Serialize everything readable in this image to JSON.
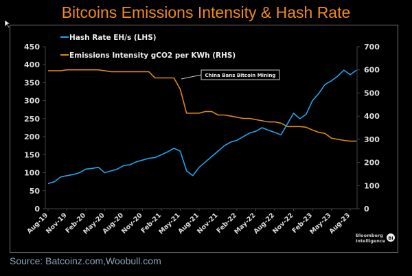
{
  "title": "Bitcoins Emissions Intensity & Hash Rate",
  "source": "Source: Batcoinz.com,Woobull.com",
  "brand": {
    "line1": "Bloomberg",
    "line2": "Intelligence",
    "badge": "BI"
  },
  "chart_data": {
    "type": "line",
    "title": "Bitcoins Emissions Intensity & Hash Rate",
    "x_tick_labels": [
      "Aug-19",
      "Nov-19",
      "Feb-20",
      "May-20",
      "Aug-20",
      "Nov-20",
      "Feb-21",
      "May-21",
      "Aug-21",
      "Nov-21",
      "Feb-22",
      "May-22",
      "Aug-22",
      "Nov-22",
      "Feb-23",
      "May-23",
      "Aug-23"
    ],
    "x": [
      "Aug-19",
      "Sep-19",
      "Oct-19",
      "Nov-19",
      "Dec-19",
      "Jan-20",
      "Feb-20",
      "Mar-20",
      "Apr-20",
      "May-20",
      "Jun-20",
      "Jul-20",
      "Aug-20",
      "Sep-20",
      "Oct-20",
      "Nov-20",
      "Dec-20",
      "Jan-21",
      "Feb-21",
      "Mar-21",
      "Apr-21",
      "May-21",
      "Jun-21",
      "Jul-21",
      "Aug-21",
      "Sep-21",
      "Oct-21",
      "Nov-21",
      "Dec-21",
      "Jan-22",
      "Feb-22",
      "Mar-22",
      "Apr-22",
      "May-22",
      "Jun-22",
      "Jul-22",
      "Aug-22",
      "Sep-22",
      "Oct-22",
      "Nov-22",
      "Dec-22",
      "Jan-23",
      "Feb-23",
      "Mar-23",
      "Apr-23",
      "May-23",
      "Jun-23",
      "Jul-23",
      "Aug-23",
      "Sep-23"
    ],
    "y_left": {
      "ylim": [
        0,
        450
      ],
      "ticks": [
        0,
        50,
        100,
        150,
        200,
        250,
        300,
        350,
        400,
        450
      ]
    },
    "y_right": {
      "ylim": [
        0,
        700
      ],
      "ticks": [
        0,
        100,
        200,
        300,
        400,
        500,
        600,
        700
      ]
    },
    "legend_placement": "top-left",
    "grid": false,
    "series": [
      {
        "name": "Hash Rate EH/s (LHS)",
        "axis": "left",
        "color": "#1ea7f0",
        "values": [
          70,
          75,
          88,
          92,
          95,
          100,
          110,
          112,
          115,
          100,
          105,
          110,
          120,
          122,
          130,
          135,
          140,
          142,
          150,
          158,
          168,
          160,
          105,
          92,
          115,
          130,
          145,
          160,
          175,
          185,
          190,
          200,
          210,
          215,
          225,
          218,
          212,
          205,
          235,
          265,
          250,
          262,
          300,
          320,
          345,
          355,
          368,
          385,
          372,
          385
        ]
      },
      {
        "name": "Emissions Intensity gCO2 per KWh (RHS)",
        "axis": "right",
        "color": "#e08a10",
        "values": [
          596,
          596,
          596,
          600,
          600,
          600,
          600,
          600,
          600,
          596,
          592,
          592,
          592,
          592,
          592,
          592,
          592,
          565,
          565,
          565,
          565,
          516,
          413,
          413,
          413,
          420,
          420,
          405,
          405,
          400,
          395,
          390,
          390,
          385,
          380,
          375,
          375,
          370,
          355,
          355,
          355,
          352,
          340,
          330,
          325,
          305,
          300,
          295,
          292,
          292
        ]
      }
    ],
    "annotations": [
      {
        "text": "China Bans Bitcoin Mining",
        "at": "May-21"
      }
    ]
  }
}
